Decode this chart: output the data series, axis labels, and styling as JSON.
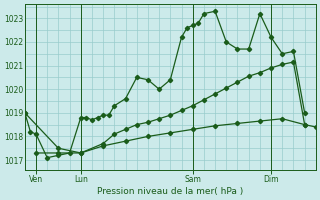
{
  "bg_color": "#cceaea",
  "grid_color": "#99cccc",
  "line_color": "#1a5c1a",
  "title": "Pression niveau de la mer( hPa )",
  "ylabel_ticks": [
    1017,
    1018,
    1019,
    1020,
    1021,
    1022,
    1023
  ],
  "day_labels": [
    "Ven",
    "Lun",
    "Sam",
    "Dim"
  ],
  "day_positions": [
    2,
    10,
    30,
    44
  ],
  "vline_positions": [
    2,
    10,
    30,
    44
  ],
  "xlim": [
    0,
    52
  ],
  "ylim": [
    1016.6,
    1023.6
  ],
  "line1_x": [
    0,
    1,
    2,
    4,
    6,
    8,
    10,
    11,
    12,
    13,
    14,
    15,
    16,
    18,
    20,
    22,
    24,
    26,
    28,
    29,
    30,
    31,
    32,
    34,
    36,
    38,
    40,
    42,
    44,
    46,
    48,
    50
  ],
  "line1_y": [
    1019.0,
    1018.2,
    1018.1,
    1017.1,
    1017.2,
    1017.3,
    1018.8,
    1018.8,
    1018.7,
    1018.8,
    1018.9,
    1018.9,
    1019.3,
    1019.6,
    1020.5,
    1020.4,
    1020.0,
    1020.4,
    1022.2,
    1022.6,
    1022.7,
    1022.8,
    1023.2,
    1023.3,
    1022.0,
    1021.7,
    1021.7,
    1023.2,
    1022.2,
    1021.5,
    1021.6,
    1019.0
  ],
  "line2_x": [
    0,
    6,
    10,
    14,
    18,
    22,
    26,
    30,
    34,
    38,
    42,
    46,
    50,
    52
  ],
  "line2_y": [
    1019.0,
    1017.5,
    1017.3,
    1017.6,
    1017.8,
    1018.0,
    1018.15,
    1018.3,
    1018.45,
    1018.55,
    1018.65,
    1018.75,
    1018.5,
    1018.4
  ],
  "line3_x": [
    2,
    6,
    10,
    14,
    16,
    18,
    20,
    22,
    24,
    26,
    28,
    30,
    32,
    34,
    36,
    38,
    40,
    42,
    44,
    46,
    48,
    50
  ],
  "line3_y": [
    1017.3,
    1017.3,
    1017.3,
    1017.7,
    1018.1,
    1018.3,
    1018.5,
    1018.6,
    1018.75,
    1018.9,
    1019.1,
    1019.3,
    1019.55,
    1019.8,
    1020.05,
    1020.3,
    1020.55,
    1020.7,
    1020.9,
    1021.05,
    1021.15,
    1018.5
  ]
}
